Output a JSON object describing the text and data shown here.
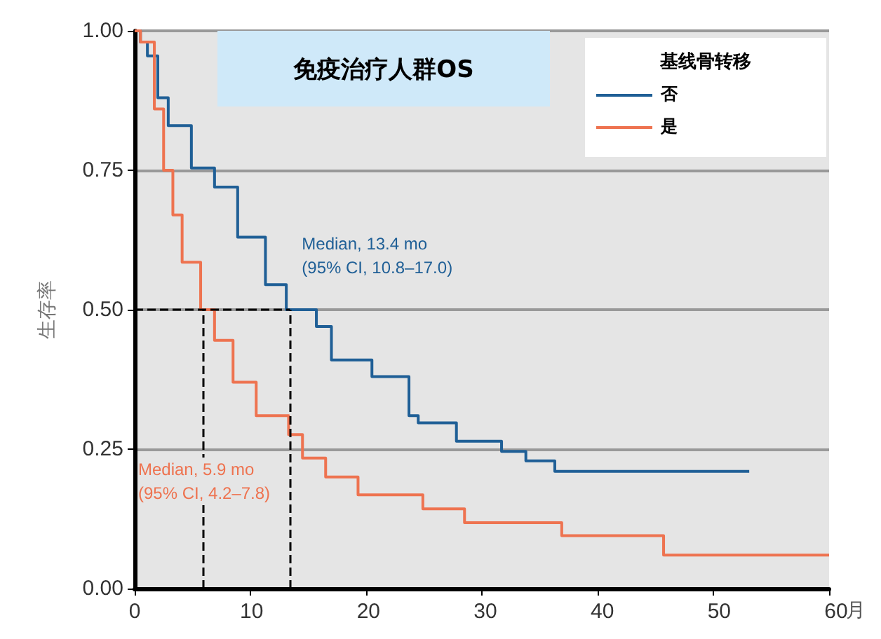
{
  "chart_data": {
    "type": "step",
    "title": "免疫治疗人群OS",
    "xlabel": "月",
    "ylabel": "生存率",
    "legend_title": "基线骨转移",
    "legend": "top right",
    "grid": "y",
    "line_style": "solid",
    "marker": "none",
    "xlim": [
      0,
      60
    ],
    "xticks": [
      0,
      10,
      20,
      30,
      40,
      50,
      60
    ],
    "ylim": [
      0,
      1
    ],
    "yticks": [
      {
        "value": 0,
        "label": "0.00"
      },
      {
        "value": 0.25,
        "label": "0.25"
      },
      {
        "value": 0.5,
        "label": "0.50"
      },
      {
        "value": 0.75,
        "label": "0.75"
      },
      {
        "value": 1,
        "label": "1.00"
      }
    ],
    "series": [
      {
        "name": "否",
        "color": "#1f5f96",
        "x": [
          0,
          0.5,
          1.1,
          2,
          2.9,
          4.9,
          6.9,
          8.9,
          11.3,
          13.1,
          15.7,
          17,
          20.5,
          23.7,
          24.5,
          27.8,
          31.7,
          33.8,
          36.3,
          53.1
        ],
        "values": [
          1,
          0.98,
          0.955,
          0.88,
          0.83,
          0.754,
          0.72,
          0.63,
          0.545,
          0.5,
          0.47,
          0.41,
          0.38,
          0.31,
          0.297,
          0.264,
          0.246,
          0.229,
          0.21,
          0.21
        ]
      },
      {
        "name": "是",
        "color": "#ee7350",
        "x": [
          0,
          0.5,
          1.7,
          2.5,
          3.3,
          4.1,
          5.7,
          6.9,
          8.5,
          10.5,
          13.3,
          14.5,
          16.5,
          19.3,
          24.9,
          28.5,
          36.9,
          45.7,
          60
        ],
        "values": [
          1,
          0.98,
          0.86,
          0.75,
          0.67,
          0.585,
          0.5,
          0.445,
          0.37,
          0.31,
          0.276,
          0.234,
          0.2,
          0.168,
          0.143,
          0.118,
          0.095,
          0.06,
          0.06
        ]
      }
    ],
    "ref_lines": [
      {
        "axis": "y",
        "value": 0.5,
        "color": "#000000",
        "line_style": "dashed"
      },
      {
        "axis": "x",
        "value": 5.9,
        "color": "#000000",
        "line_style": "dashed"
      },
      {
        "axis": "x",
        "value": 13.4,
        "color": "#000000",
        "line_style": "dashed"
      }
    ],
    "annotations": [
      "Median, 13.4 mo\n(95% CI, 10.8–17.0)",
      "Median, 5.9 mo\n(95% CI, 4.2–7.8)"
    ]
  }
}
